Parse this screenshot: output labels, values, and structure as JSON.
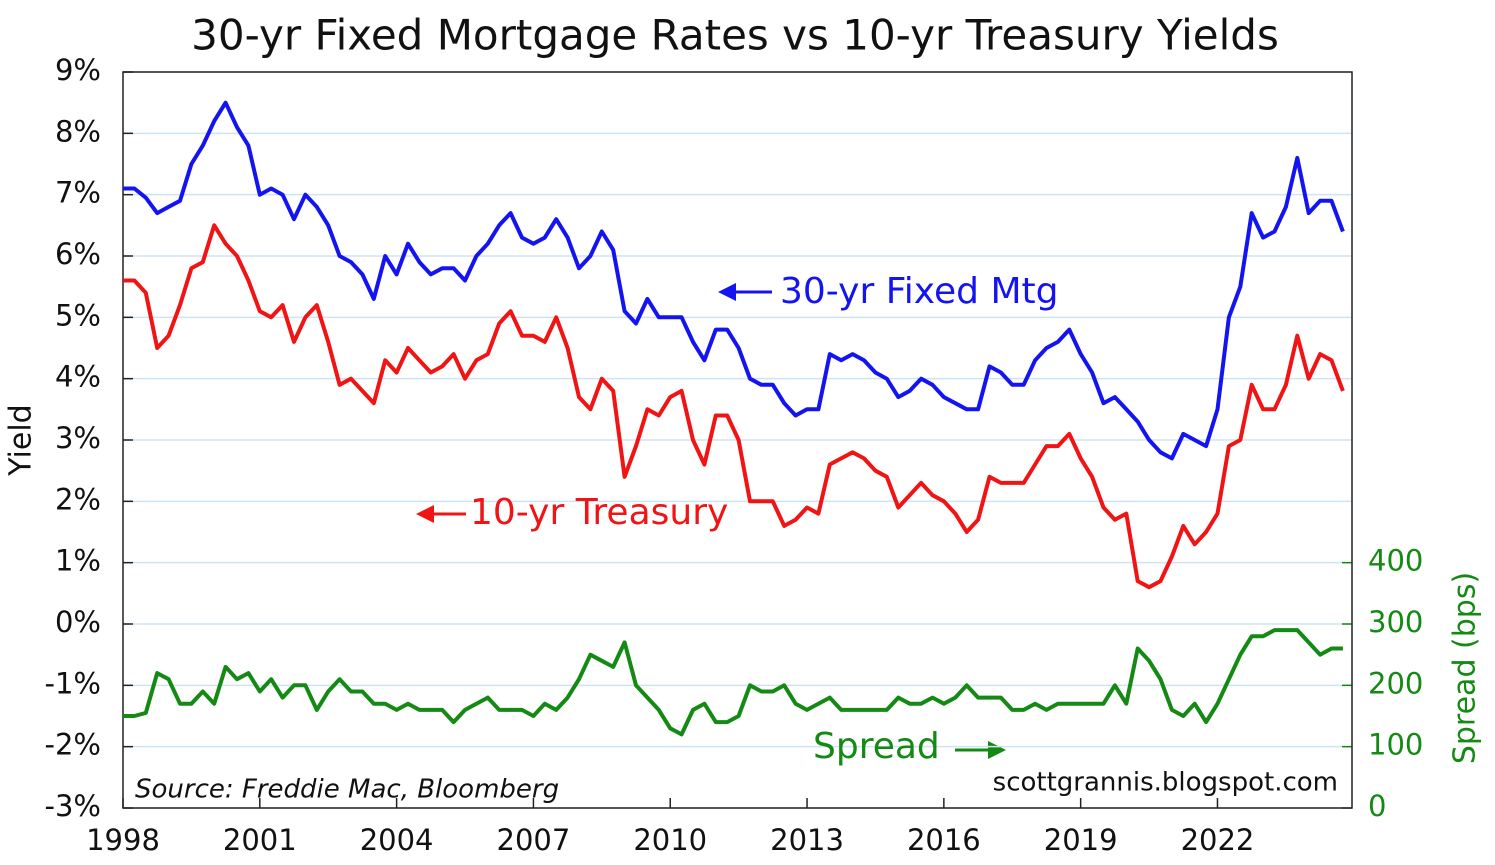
{
  "chart_data": {
    "type": "line",
    "title": "30-yr Fixed Mortgage Rates vs 10-yr Treasury Yields",
    "y_label": "Yield",
    "y2_label": "Spread (bps)",
    "source": "Source: Freddie Mac, Bloomberg",
    "credit": "scottgrannis.blogspot.com",
    "x": [
      1998,
      1998.25,
      1998.5,
      1998.75,
      1999,
      1999.25,
      1999.5,
      1999.75,
      2000,
      2000.25,
      2000.5,
      2000.75,
      2001,
      2001.25,
      2001.5,
      2001.75,
      2002,
      2002.25,
      2002.5,
      2002.75,
      2003,
      2003.25,
      2003.5,
      2003.75,
      2004,
      2004.25,
      2004.5,
      2004.75,
      2005,
      2005.25,
      2005.5,
      2005.75,
      2006,
      2006.25,
      2006.5,
      2006.75,
      2007,
      2007.25,
      2007.5,
      2007.75,
      2008,
      2008.25,
      2008.5,
      2008.75,
      2009,
      2009.25,
      2009.5,
      2009.75,
      2010,
      2010.25,
      2010.5,
      2010.75,
      2011,
      2011.25,
      2011.5,
      2011.75,
      2012,
      2012.25,
      2012.5,
      2012.75,
      2013,
      2013.25,
      2013.5,
      2013.75,
      2014,
      2014.25,
      2014.5,
      2014.75,
      2015,
      2015.25,
      2015.5,
      2015.75,
      2016,
      2016.25,
      2016.5,
      2016.75,
      2017,
      2017.25,
      2017.5,
      2017.75,
      2018,
      2018.25,
      2018.5,
      2018.75,
      2019,
      2019.25,
      2019.5,
      2019.75,
      2020,
      2020.25,
      2020.5,
      2020.75,
      2021,
      2021.25,
      2021.5,
      2021.75,
      2022,
      2022.25,
      2022.5,
      2022.75,
      2023,
      2023.25,
      2023.5,
      2023.75,
      2024,
      2024.25,
      2024.5,
      2024.75
    ],
    "series": [
      {
        "name": "30-yr Fixed Mtg",
        "color": "#1414f0",
        "axis": "y",
        "values": [
          7.1,
          7.1,
          6.95,
          6.7,
          6.8,
          6.9,
          7.5,
          7.8,
          8.2,
          8.5,
          8.1,
          7.8,
          7.0,
          7.1,
          7.0,
          6.6,
          7.0,
          6.8,
          6.5,
          6.0,
          5.9,
          5.7,
          5.3,
          6.0,
          5.7,
          6.2,
          5.9,
          5.7,
          5.8,
          5.8,
          5.6,
          6.0,
          6.2,
          6.5,
          6.7,
          6.3,
          6.2,
          6.3,
          6.6,
          6.3,
          5.8,
          6.0,
          6.4,
          6.1,
          5.1,
          4.9,
          5.3,
          5.0,
          5.0,
          5.0,
          4.6,
          4.3,
          4.8,
          4.8,
          4.5,
          4.0,
          3.9,
          3.9,
          3.6,
          3.4,
          3.5,
          3.5,
          4.4,
          4.3,
          4.4,
          4.3,
          4.1,
          4.0,
          3.7,
          3.8,
          4.0,
          3.9,
          3.7,
          3.6,
          3.5,
          3.5,
          4.2,
          4.1,
          3.9,
          3.9,
          4.3,
          4.5,
          4.6,
          4.8,
          4.4,
          4.1,
          3.6,
          3.7,
          3.5,
          3.3,
          3.0,
          2.8,
          2.7,
          3.1,
          3.0,
          2.9,
          3.5,
          5.0,
          5.5,
          6.7,
          6.3,
          6.4,
          6.8,
          7.6,
          6.7,
          6.9,
          6.9,
          6.4
        ]
      },
      {
        "name": "10-yr Treasury",
        "color": "#f01414",
        "axis": "y",
        "values": [
          5.6,
          5.6,
          5.4,
          4.5,
          4.7,
          5.2,
          5.8,
          5.9,
          6.5,
          6.2,
          6.0,
          5.6,
          5.1,
          5.0,
          5.2,
          4.6,
          5.0,
          5.2,
          4.6,
          3.9,
          4.0,
          3.8,
          3.6,
          4.3,
          4.1,
          4.5,
          4.3,
          4.1,
          4.2,
          4.4,
          4.0,
          4.3,
          4.4,
          4.9,
          5.1,
          4.7,
          4.7,
          4.6,
          5.0,
          4.5,
          3.7,
          3.5,
          4.0,
          3.8,
          2.4,
          2.9,
          3.5,
          3.4,
          3.7,
          3.8,
          3.0,
          2.6,
          3.4,
          3.4,
          3.0,
          2.0,
          2.0,
          2.0,
          1.6,
          1.7,
          1.9,
          1.8,
          2.6,
          2.7,
          2.8,
          2.7,
          2.5,
          2.4,
          1.9,
          2.1,
          2.3,
          2.1,
          2.0,
          1.8,
          1.5,
          1.7,
          2.4,
          2.3,
          2.3,
          2.3,
          2.6,
          2.9,
          2.9,
          3.1,
          2.7,
          2.4,
          1.9,
          1.7,
          1.8,
          0.7,
          0.6,
          0.7,
          1.1,
          1.6,
          1.3,
          1.5,
          1.8,
          2.9,
          3.0,
          3.9,
          3.5,
          3.5,
          3.9,
          4.7,
          4.0,
          4.4,
          4.3,
          3.8
        ]
      },
      {
        "name": "Spread",
        "color": "#148a14",
        "axis": "y2",
        "values": [
          150,
          150,
          155,
          220,
          210,
          170,
          170,
          190,
          170,
          230,
          210,
          220,
          190,
          210,
          180,
          200,
          200,
          160,
          190,
          210,
          190,
          190,
          170,
          170,
          160,
          170,
          160,
          160,
          160,
          140,
          160,
          170,
          180,
          160,
          160,
          160,
          150,
          170,
          160,
          180,
          210,
          250,
          240,
          230,
          270,
          200,
          180,
          160,
          130,
          120,
          160,
          170,
          140,
          140,
          150,
          200,
          190,
          190,
          200,
          170,
          160,
          170,
          180,
          160,
          160,
          160,
          160,
          160,
          180,
          170,
          170,
          180,
          170,
          180,
          200,
          180,
          180,
          180,
          160,
          160,
          170,
          160,
          170,
          170,
          170,
          170,
          170,
          200,
          170,
          260,
          240,
          210,
          160,
          150,
          170,
          140,
          170,
          210,
          250,
          280,
          280,
          290,
          290,
          290,
          270,
          250,
          260,
          260
        ]
      }
    ],
    "xlim": [
      1998,
      2024.95
    ],
    "xticks": [
      1998,
      2001,
      2004,
      2007,
      2010,
      2013,
      2016,
      2019,
      2022
    ],
    "ylim": [
      -3,
      9
    ],
    "yticks": [
      {
        "value": -3,
        "label": "-3%"
      },
      {
        "value": -2,
        "label": "-2%"
      },
      {
        "value": -1,
        "label": "-1%"
      },
      {
        "value": 0,
        "label": "0%"
      },
      {
        "value": 1,
        "label": "1%"
      },
      {
        "value": 2,
        "label": "2%"
      },
      {
        "value": 3,
        "label": "3%"
      },
      {
        "value": 4,
        "label": "4%"
      },
      {
        "value": 5,
        "label": "5%"
      },
      {
        "value": 6,
        "label": "6%"
      },
      {
        "value": 7,
        "label": "7%"
      },
      {
        "value": 8,
        "label": "8%"
      },
      {
        "value": 9,
        "label": "9%"
      }
    ],
    "y2lim": [
      0,
      1200
    ],
    "y2ticks": [
      0,
      100,
      200,
      300,
      400
    ],
    "grid": true
  }
}
